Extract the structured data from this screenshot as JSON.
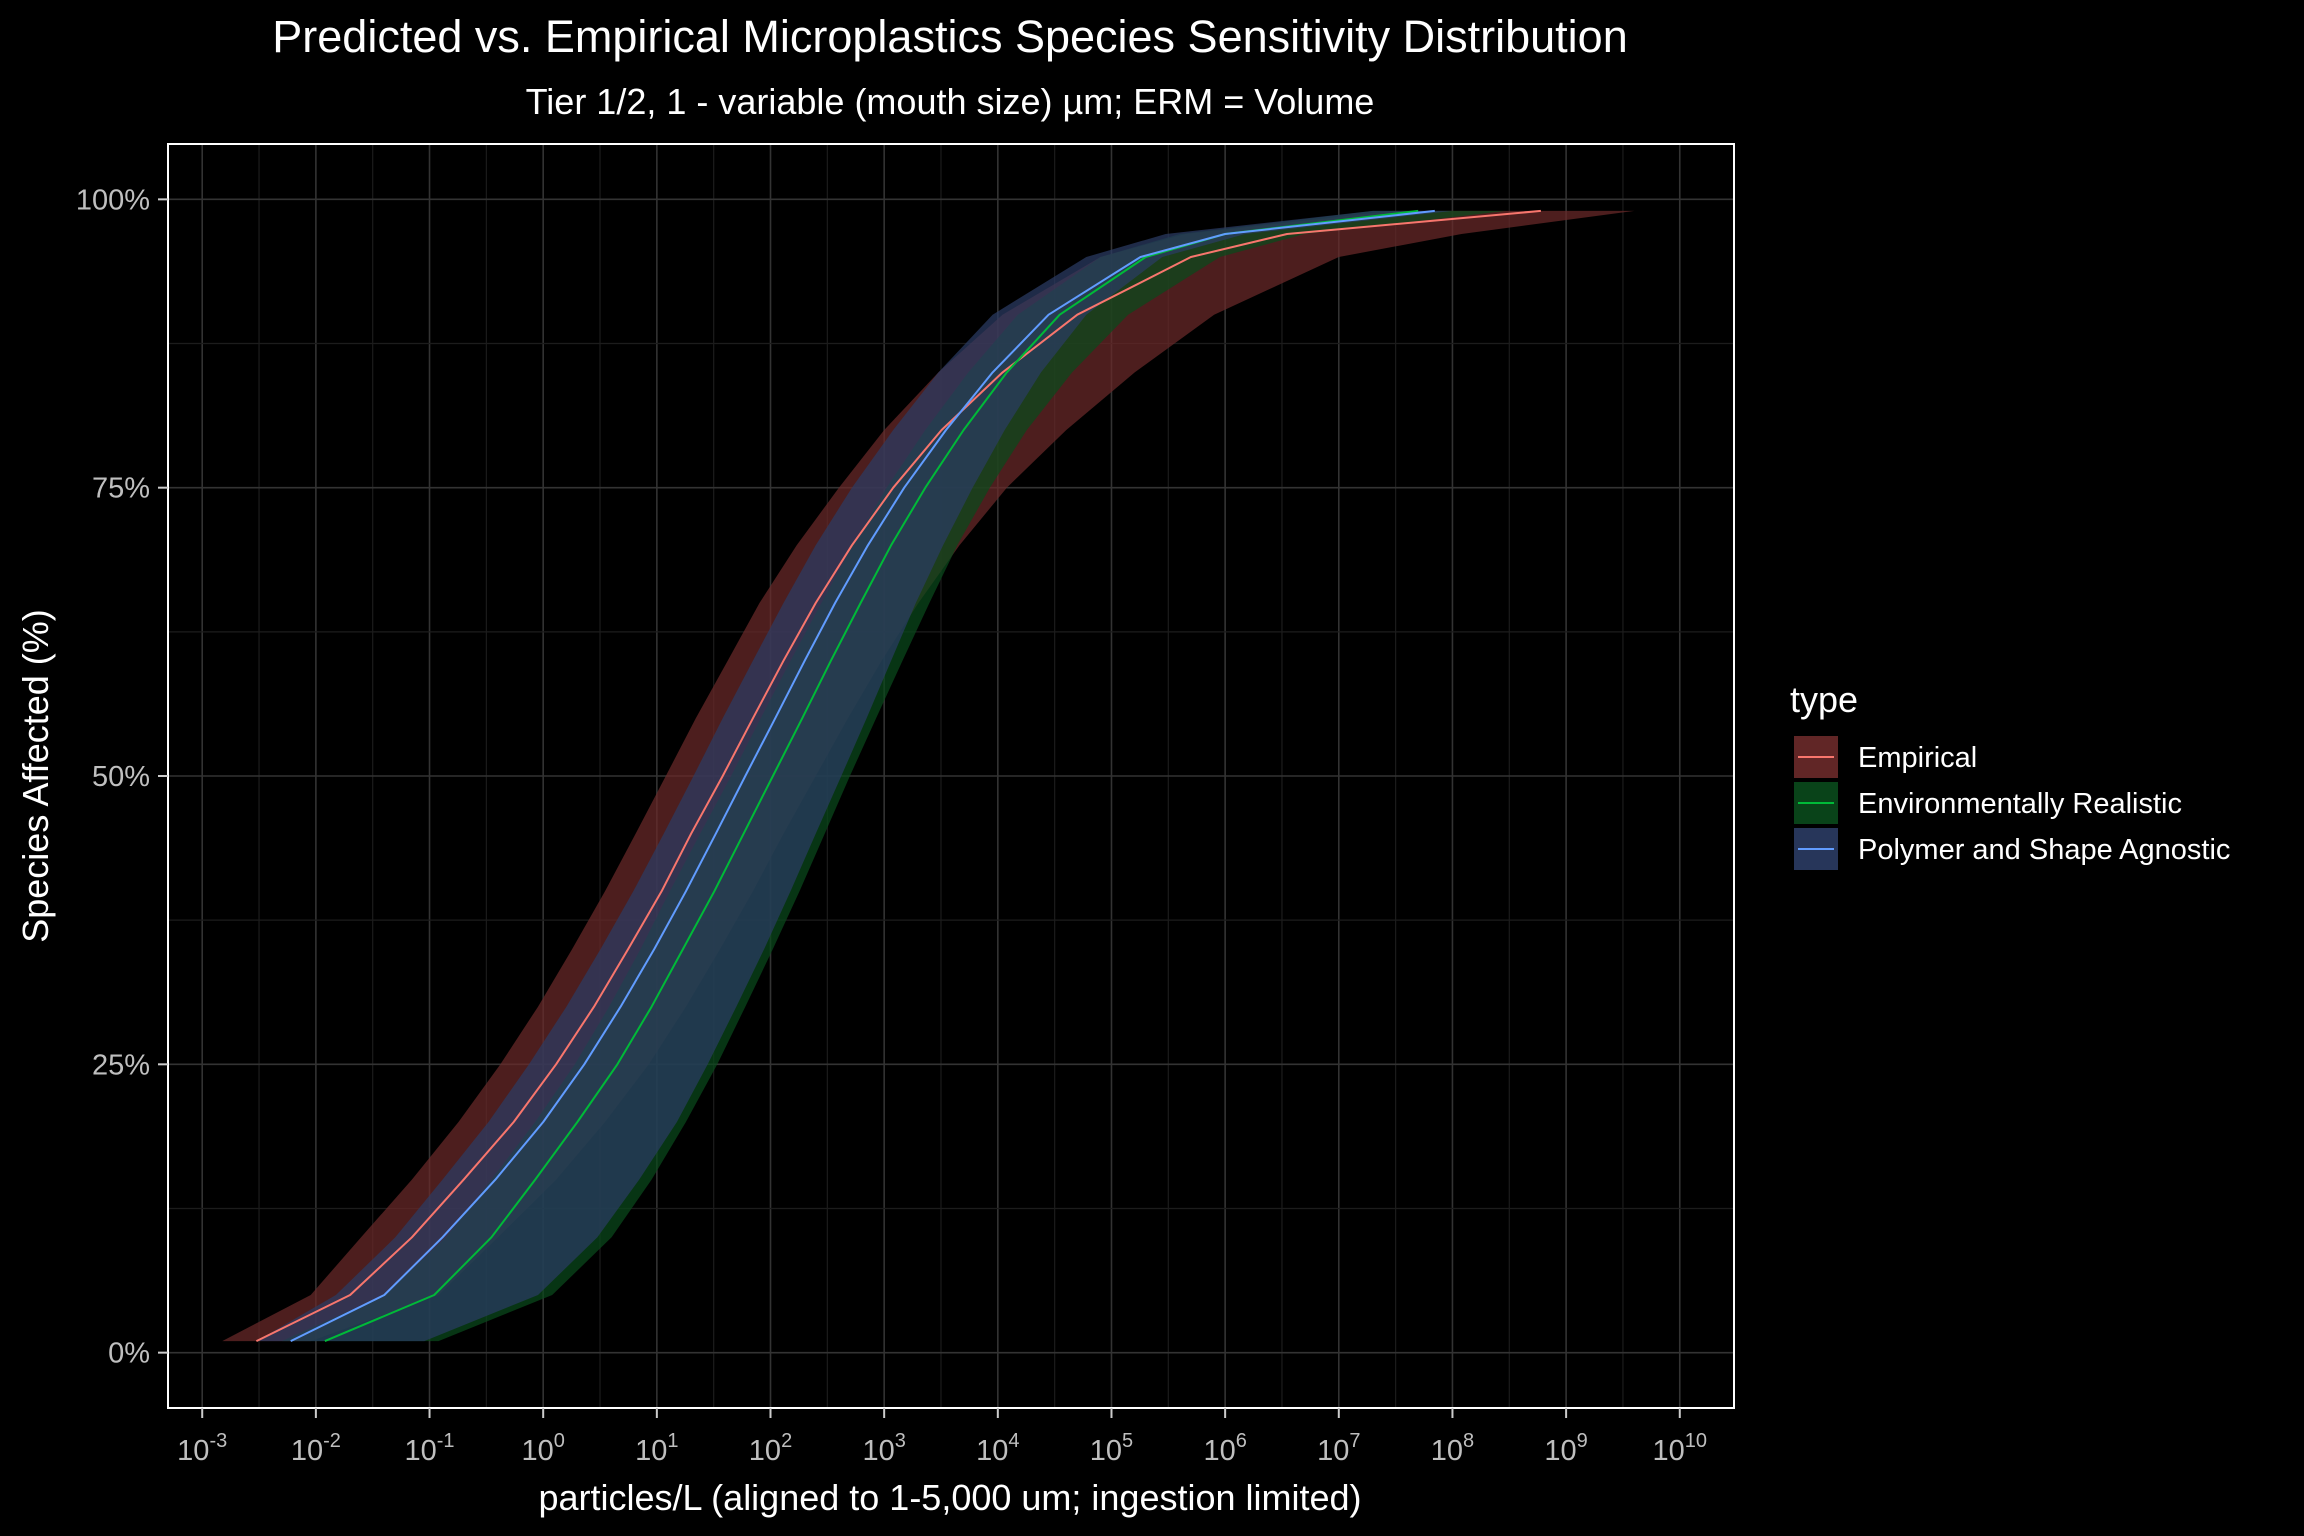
{
  "chart_data": {
    "type": "line",
    "title": "Predicted vs. Empirical Microplastics Species Sensitivity Distribution",
    "subtitle": "Tier 1/2, 1 - variable (mouth size) µm; ERM = Volume",
    "xlabel": "particles/L (aligned to 1-5,000 um; ingestion limited)",
    "ylabel": "Species Affected (%)",
    "x_scale": "log10",
    "xlim": [
      0.0005,
      30000000000
    ],
    "ylim": [
      -0.048,
      1.048
    ],
    "x_ticks": [
      {
        "base": "10",
        "exp": "-3",
        "value": 0.001
      },
      {
        "base": "10",
        "exp": "-2",
        "value": 0.01
      },
      {
        "base": "10",
        "exp": "-1",
        "value": 0.1
      },
      {
        "base": "10",
        "exp": "0",
        "value": 1
      },
      {
        "base": "10",
        "exp": "1",
        "value": 10
      },
      {
        "base": "10",
        "exp": "2",
        "value": 100
      },
      {
        "base": "10",
        "exp": "3",
        "value": 1000
      },
      {
        "base": "10",
        "exp": "4",
        "value": 10000
      },
      {
        "base": "10",
        "exp": "5",
        "value": 100000
      },
      {
        "base": "10",
        "exp": "6",
        "value": 1000000
      },
      {
        "base": "10",
        "exp": "7",
        "value": 10000000
      },
      {
        "base": "10",
        "exp": "8",
        "value": 100000000
      },
      {
        "base": "10",
        "exp": "9",
        "value": 1000000000
      },
      {
        "base": "10",
        "exp": "10",
        "value": 10000000000
      }
    ],
    "y_ticks": [
      {
        "label": "0%",
        "value": 0
      },
      {
        "label": "25%",
        "value": 0.25
      },
      {
        "label": "50%",
        "value": 0.5
      },
      {
        "label": "75%",
        "value": 0.75
      },
      {
        "label": "100%",
        "value": 1
      }
    ],
    "grid": true,
    "legend": {
      "title": "type",
      "position": "right"
    },
    "y_values": [
      0.01,
      0.05,
      0.1,
      0.15,
      0.2,
      0.25,
      0.3,
      0.35,
      0.4,
      0.45,
      0.5,
      0.55,
      0.6,
      0.65,
      0.7,
      0.75,
      0.8,
      0.85,
      0.9,
      0.95,
      0.97,
      0.99
    ],
    "series": [
      {
        "name": "Empirical",
        "line_color": "#f8766d",
        "fill_color": "#6b2a2a",
        "fit_x": [
          0.003,
          0.02,
          0.07,
          0.2,
          0.55,
          1.3,
          2.8,
          5.6,
          11,
          20,
          38,
          70,
          130,
          250,
          520,
          1200,
          3200,
          11000,
          50000,
          500000,
          3500000,
          600000000
        ],
        "lower_x": [
          0.0015,
          0.009,
          0.025,
          0.07,
          0.18,
          0.42,
          0.9,
          1.8,
          3.5,
          6.5,
          12,
          22,
          42,
          80,
          170,
          400,
          1000,
          3000,
          11000,
          80000,
          450000,
          30000000
        ],
        "upper_x": [
          0.009,
          0.12,
          0.4,
          1.3,
          3.5,
          8.5,
          18,
          36,
          70,
          130,
          250,
          480,
          950,
          2000,
          4600,
          12000,
          40000,
          160000,
          800000,
          10000000,
          120000000,
          4000000000
        ]
      },
      {
        "name": "Environmentally Realistic",
        "line_color": "#00ba38",
        "fill_color": "#0a4a1c",
        "fit_x": [
          0.012,
          0.11,
          0.35,
          0.85,
          2,
          4.5,
          9,
          17,
          32,
          58,
          105,
          190,
          340,
          620,
          1150,
          2300,
          5000,
          12000,
          35000,
          200000,
          1000000,
          50000000
        ],
        "lower_x": [
          0.005,
          0.04,
          0.14,
          0.35,
          0.85,
          1.9,
          3.8,
          7.2,
          13,
          24,
          45,
          82,
          150,
          280,
          530,
          1050,
          2300,
          5500,
          15000,
          80000,
          400000,
          20000000
        ],
        "upper_x": [
          0.12,
          1.2,
          4,
          9,
          18,
          34,
          60,
          105,
          180,
          300,
          500,
          850,
          1450,
          2500,
          4400,
          8500,
          18000,
          45000,
          140000,
          900000,
          5000000,
          300000000
        ]
      },
      {
        "name": "Polymer and Shape Agnostic",
        "line_color": "#619cff",
        "fill_color": "#2b3c64",
        "fit_x": [
          0.006,
          0.04,
          0.13,
          0.38,
          1,
          2.3,
          4.8,
          9.5,
          18,
          33,
          60,
          110,
          200,
          370,
          720,
          1500,
          3500,
          9000,
          28000,
          180000,
          1000000,
          70000000
        ],
        "lower_x": [
          0.003,
          0.015,
          0.05,
          0.13,
          0.33,
          0.75,
          1.6,
          3.2,
          6.2,
          11.5,
          21,
          38,
          70,
          130,
          250,
          520,
          1200,
          3000,
          9000,
          60000,
          300000,
          20000000
        ],
        "upper_x": [
          0.09,
          0.9,
          3,
          7,
          15,
          28,
          50,
          88,
          150,
          250,
          420,
          700,
          1150,
          1900,
          3300,
          6000,
          11500,
          24000,
          60000,
          280000,
          1500000,
          100000000
        ]
      }
    ]
  }
}
